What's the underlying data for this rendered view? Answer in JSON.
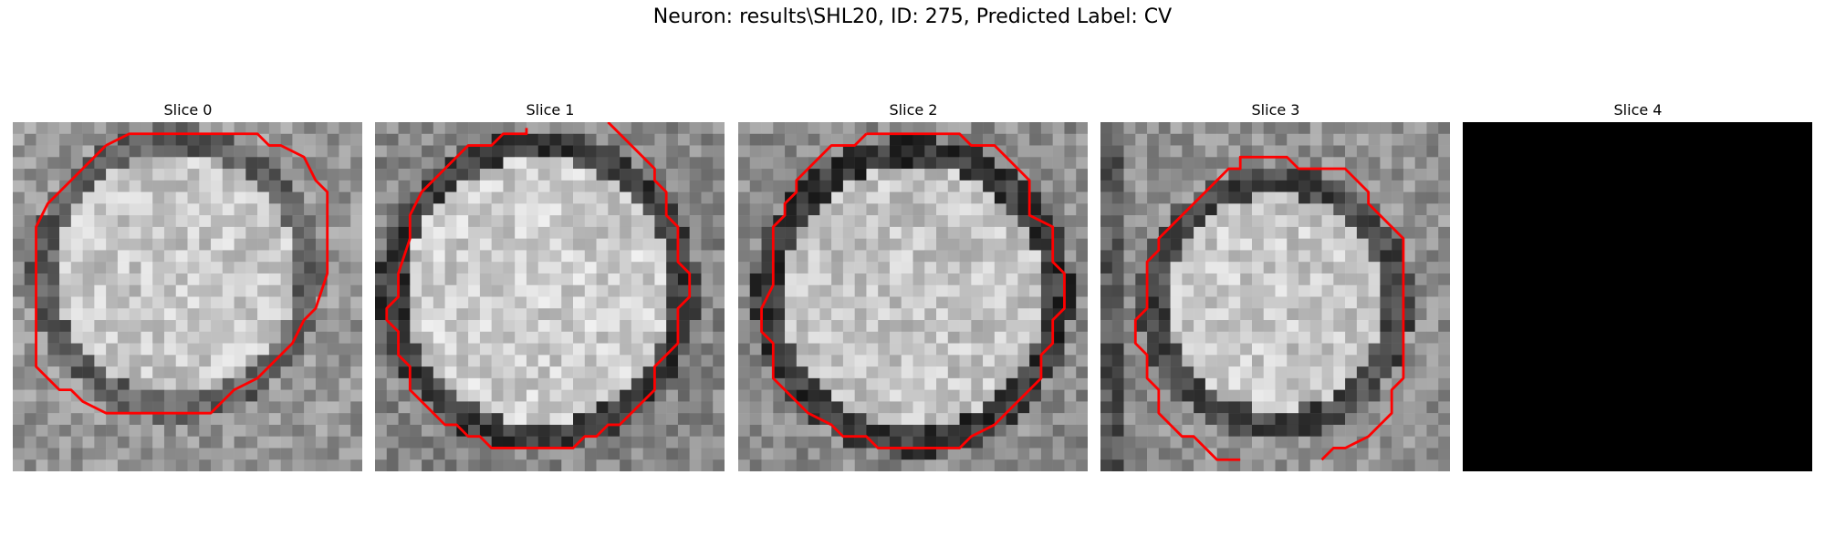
{
  "figure": {
    "suptitle": "Neuron: results\\SHL20, ID: 275, Predicted Label: CV",
    "contour_color": "#ff0000"
  },
  "slices": [
    {
      "title": "Slice 0",
      "variant": "cell"
    },
    {
      "title": "Slice 1",
      "variant": "cell"
    },
    {
      "title": "Slice 2",
      "variant": "cell"
    },
    {
      "title": "Slice 3",
      "variant": "cell"
    },
    {
      "title": "Slice 4",
      "variant": "black"
    }
  ]
}
